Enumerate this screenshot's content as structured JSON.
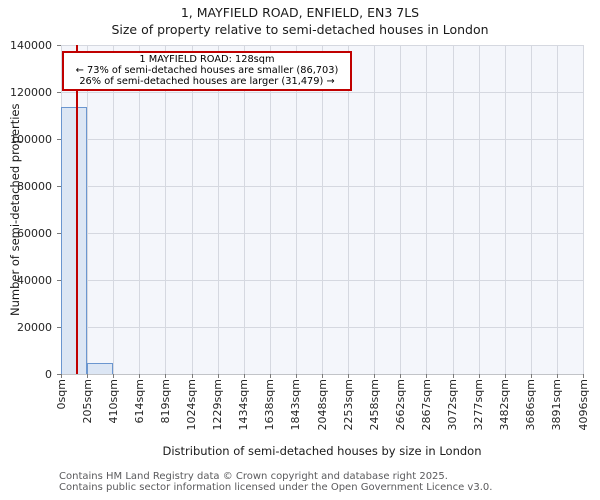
{
  "title": "1, MAYFIELD ROAD, ENFIELD, EN3 7LS",
  "subtitle": "Size of property relative to semi-detached houses in London",
  "annotation": {
    "line1": "1 MAYFIELD ROAD: 128sqm",
    "line2": "← 73% of semi-detached houses are smaller (86,703)",
    "line3": "26% of semi-detached houses are larger (31,479) →"
  },
  "footer": {
    "line1": "Contains HM Land Registry data © Crown copyright and database right 2025.",
    "line2": "Contains public sector information licensed under the Open Government Licence v3.0."
  },
  "chart_data": {
    "type": "bar",
    "title": "1, MAYFIELD ROAD, ENFIELD, EN3 7LS",
    "subtitle": "Size of property relative to semi-detached houses in London",
    "xlabel": "Distribution of semi-detached houses by size in London",
    "ylabel": "Number of semi-detached properties",
    "ylim": [
      0,
      140000
    ],
    "xlim_sqm": [
      0,
      4096
    ],
    "bin_width_sqm": 204.8,
    "grid": true,
    "x_tick_labels": [
      "0sqm",
      "205sqm",
      "410sqm",
      "614sqm",
      "819sqm",
      "1024sqm",
      "1229sqm",
      "1434sqm",
      "1638sqm",
      "1843sqm",
      "2048sqm",
      "2253sqm",
      "2458sqm",
      "2662sqm",
      "2867sqm",
      "3072sqm",
      "3277sqm",
      "3482sqm",
      "3686sqm",
      "3891sqm",
      "4096sqm"
    ],
    "y_tick_labels": [
      "0",
      "20000",
      "40000",
      "60000",
      "80000",
      "100000",
      "120000",
      "140000"
    ],
    "values": [
      113500,
      4700,
      0,
      0,
      0,
      0,
      0,
      0,
      0,
      0,
      0,
      0,
      0,
      0,
      0,
      0,
      0,
      0,
      0,
      0
    ],
    "marker_value_sqm": 128,
    "colors": {
      "bar_fill": "#dce6f4",
      "bar_edge": "#6b96cf",
      "marker": "#c00000",
      "grid": "#d5d8e0",
      "plot_bg": "#f4f6fb",
      "annotation_border": "#c00000"
    }
  }
}
